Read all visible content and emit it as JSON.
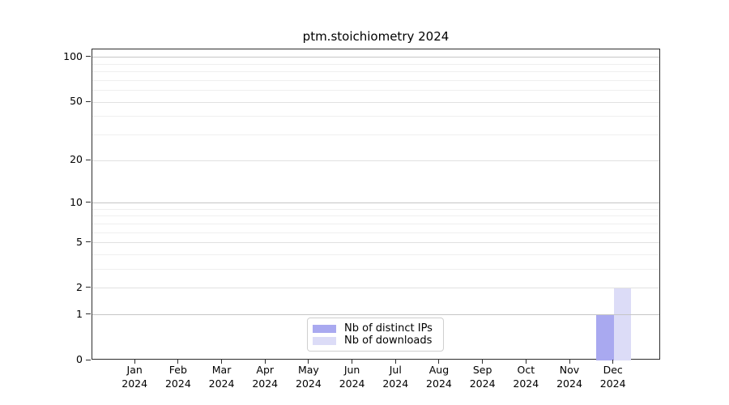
{
  "chart_data": {
    "type": "bar",
    "title": "ptm.stoichiometry 2024",
    "categories": [
      "Jan",
      "Feb",
      "Mar",
      "Apr",
      "May",
      "Jun",
      "Jul",
      "Aug",
      "Sep",
      "Oct",
      "Nov",
      "Dec"
    ],
    "year_label": "2024",
    "series": [
      {
        "name": "Nb of distinct IPs",
        "color": "#a9a9f0",
        "values": [
          0,
          0,
          0,
          0,
          0,
          0,
          0,
          0,
          0,
          0,
          0,
          1
        ]
      },
      {
        "name": "Nb of downloads",
        "color": "#dcdcf7",
        "values": [
          0,
          0,
          0,
          0,
          0,
          0,
          0,
          0,
          0,
          0,
          0,
          2
        ]
      }
    ],
    "yscale": "log1p",
    "ylim": [
      0,
      113
    ],
    "yticks": [
      0,
      1,
      2,
      5,
      10,
      20,
      50,
      100
    ],
    "power_ticks": [
      1,
      10,
      100
    ],
    "minor_gridlines": [
      3,
      4,
      6,
      7,
      8,
      9,
      30,
      40,
      60,
      70,
      80,
      90
    ],
    "grid": "horizontal",
    "legend_position": "bottom-center"
  }
}
